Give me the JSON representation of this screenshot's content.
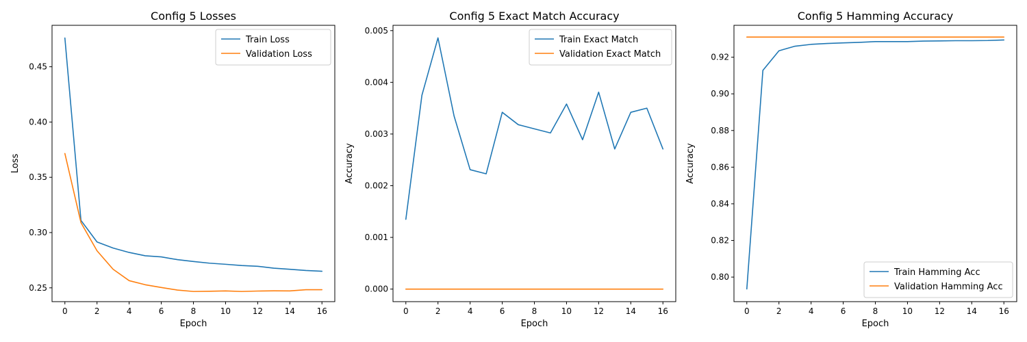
{
  "chart_data": [
    {
      "type": "line",
      "title": "Config 5 Losses",
      "xlabel": "Epoch",
      "ylabel": "Loss",
      "xlim": [
        -0.8,
        16.8
      ],
      "ylim": [
        0.2375,
        0.4875
      ],
      "xticks": [
        "0",
        "2",
        "4",
        "6",
        "8",
        "10",
        "12",
        "14",
        "16"
      ],
      "yticks": [
        "0.25",
        "0.30",
        "0.35",
        "0.40",
        "0.45"
      ],
      "legend_position": "top-right",
      "grid": false,
      "series": [
        {
          "name": "Train Loss",
          "color": "#1f77b4",
          "x": [
            0,
            1,
            2,
            3,
            4,
            5,
            6,
            7,
            8,
            9,
            10,
            11,
            12,
            13,
            14,
            15,
            16
          ],
          "y": [
            0.476,
            0.311,
            0.2915,
            0.286,
            0.282,
            0.279,
            0.278,
            0.2755,
            0.2738,
            0.2723,
            0.2713,
            0.2702,
            0.2695,
            0.2678,
            0.2668,
            0.2657,
            0.265
          ]
        },
        {
          "name": "Validation Loss",
          "color": "#ff7f0e",
          "x": [
            0,
            1,
            2,
            3,
            4,
            5,
            6,
            7,
            8,
            9,
            10,
            11,
            12,
            13,
            14,
            15,
            16
          ],
          "y": [
            0.3715,
            0.309,
            0.2835,
            0.2668,
            0.2565,
            0.2528,
            0.2503,
            0.248,
            0.2467,
            0.2469,
            0.2472,
            0.2467,
            0.2471,
            0.2473,
            0.2472,
            0.2483,
            0.2483
          ]
        }
      ]
    },
    {
      "type": "line",
      "title": "Config 5 Exact Match Accuracy",
      "xlabel": "Epoch",
      "ylabel": "Accuracy",
      "xlim": [
        -0.8,
        16.8
      ],
      "ylim": [
        -0.000243,
        0.005103
      ],
      "xticks": [
        "0",
        "2",
        "4",
        "6",
        "8",
        "10",
        "12",
        "14",
        "16"
      ],
      "yticks": [
        "0.000",
        "0.001",
        "0.002",
        "0.003",
        "0.004",
        "0.005"
      ],
      "legend_position": "top-right",
      "grid": false,
      "series": [
        {
          "name": "Train Exact Match",
          "color": "#1f77b4",
          "x": [
            0,
            1,
            2,
            3,
            4,
            5,
            6,
            7,
            8,
            9,
            10,
            11,
            12,
            13,
            14,
            15,
            16
          ],
          "y": [
            0.00135,
            0.00375,
            0.00486,
            0.00335,
            0.00231,
            0.00223,
            0.00342,
            0.00318,
            0.0031,
            0.00302,
            0.00358,
            0.00289,
            0.00381,
            0.00271,
            0.00342,
            0.0035,
            0.00271
          ]
        },
        {
          "name": "Validation Exact Match",
          "color": "#ff7f0e",
          "x": [
            0,
            1,
            2,
            3,
            4,
            5,
            6,
            7,
            8,
            9,
            10,
            11,
            12,
            13,
            14,
            15,
            16
          ],
          "y": [
            0,
            0,
            0,
            0,
            0,
            0,
            0,
            0,
            0,
            0,
            0,
            0,
            0,
            0,
            0,
            0,
            0
          ]
        }
      ]
    },
    {
      "type": "line",
      "title": "Config 5 Hamming Accuracy",
      "xlabel": "Epoch",
      "ylabel": "Accuracy",
      "xlim": [
        -0.8,
        16.8
      ],
      "ylim": [
        0.7866,
        0.9374
      ],
      "xticks": [
        "0",
        "2",
        "4",
        "6",
        "8",
        "10",
        "12",
        "14",
        "16"
      ],
      "yticks": [
        "0.80",
        "0.82",
        "0.84",
        "0.86",
        "0.88",
        "0.90",
        "0.92"
      ],
      "legend_position": "bottom-right",
      "grid": false,
      "series": [
        {
          "name": "Train Hamming Acc",
          "color": "#1f77b4",
          "x": [
            0,
            1,
            2,
            3,
            4,
            5,
            6,
            7,
            8,
            9,
            10,
            11,
            12,
            13,
            14,
            15,
            16
          ],
          "y": [
            0.7935,
            0.9128,
            0.9235,
            0.926,
            0.927,
            0.9275,
            0.9278,
            0.9281,
            0.9285,
            0.9285,
            0.9285,
            0.9288,
            0.9289,
            0.929,
            0.929,
            0.9291,
            0.9294
          ]
        },
        {
          "name": "Validation Hamming Acc",
          "color": "#ff7f0e",
          "x": [
            0,
            1,
            2,
            3,
            4,
            5,
            6,
            7,
            8,
            9,
            10,
            11,
            12,
            13,
            14,
            15,
            16
          ],
          "y": [
            0.931,
            0.931,
            0.931,
            0.931,
            0.931,
            0.931,
            0.931,
            0.931,
            0.931,
            0.931,
            0.931,
            0.931,
            0.931,
            0.931,
            0.931,
            0.931,
            0.931
          ]
        }
      ]
    }
  ]
}
